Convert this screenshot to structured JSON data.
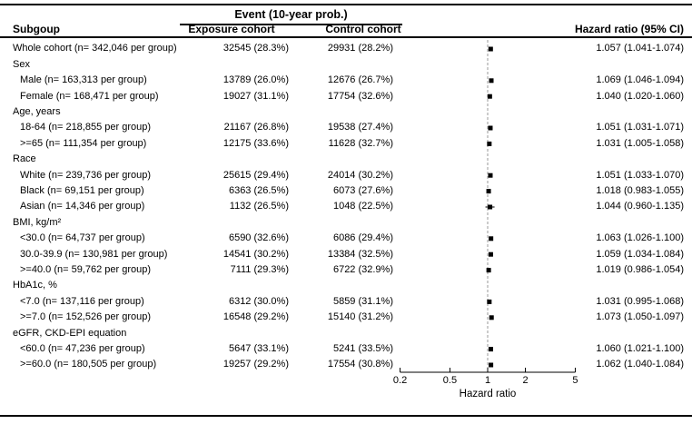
{
  "table": {
    "header": {
      "subgroup": "Subgoup",
      "event_group": "Event (10-year prob.)",
      "exposure": "Exposure cohort",
      "control": "Control cohort",
      "hazard_ratio": "Hazard ratio (95% CI)"
    },
    "rows": [
      {
        "label": "Whole cohort (n= 342,046 per group)",
        "indent": false,
        "exposure": "32545 (28.3%)",
        "control": "29931 (28.2%)",
        "hr_text": "1.057 (1.041-1.074)",
        "hr": 1.057,
        "lo": 1.041,
        "hi": 1.074
      },
      {
        "label": "Sex",
        "indent": false
      },
      {
        "label": "Male (n= 163,313 per group)",
        "indent": true,
        "exposure": "13789 (26.0%)",
        "control": "12676 (26.7%)",
        "hr_text": "1.069 (1.046-1.094)",
        "hr": 1.069,
        "lo": 1.046,
        "hi": 1.094
      },
      {
        "label": "Female (n= 168,471 per group)",
        "indent": true,
        "exposure": "19027 (31.1%)",
        "control": "17754 (32.6%)",
        "hr_text": "1.040 (1.020-1.060)",
        "hr": 1.04,
        "lo": 1.02,
        "hi": 1.06
      },
      {
        "label": "Age, years",
        "indent": false
      },
      {
        "label": "18-64 (n= 218,855 per group)",
        "indent": true,
        "exposure": "21167 (26.8%)",
        "control": "19538 (27.4%)",
        "hr_text": "1.051 (1.031-1.071)",
        "hr": 1.051,
        "lo": 1.031,
        "hi": 1.071
      },
      {
        "label": ">=65 (n= 111,354 per group)",
        "indent": true,
        "exposure": "12175 (33.6%)",
        "control": "11628 (32.7%)",
        "hr_text": "1.031 (1.005-1.058)",
        "hr": 1.031,
        "lo": 1.005,
        "hi": 1.058
      },
      {
        "label": "Race",
        "indent": false
      },
      {
        "label": "White (n= 239,736 per group)",
        "indent": true,
        "exposure": "25615 (29.4%)",
        "control": "24014 (30.2%)",
        "hr_text": "1.051 (1.033-1.070)",
        "hr": 1.051,
        "lo": 1.033,
        "hi": 1.07
      },
      {
        "label": "Black (n= 69,151 per group)",
        "indent": true,
        "exposure": "6363 (26.5%)",
        "control": "6073 (27.6%)",
        "hr_text": "1.018 (0.983-1.055)",
        "hr": 1.018,
        "lo": 0.983,
        "hi": 1.055
      },
      {
        "label": "Asian (n= 14,346 per group)",
        "indent": true,
        "exposure": "1132 (26.5%)",
        "control": "1048 (22.5%)",
        "hr_text": "1.044 (0.960-1.135)",
        "hr": 1.044,
        "lo": 0.96,
        "hi": 1.135
      },
      {
        "label": "BMI, kg/m²",
        "indent": false
      },
      {
        "label": "<30.0 (n= 64,737 per group)",
        "indent": true,
        "exposure": "6590 (32.6%)",
        "control": "6086 (29.4%)",
        "hr_text": "1.063 (1.026-1.100)",
        "hr": 1.063,
        "lo": 1.026,
        "hi": 1.1
      },
      {
        "label": "30.0-39.9 (n= 130,981 per group)",
        "indent": true,
        "exposure": "14541 (30.2%)",
        "control": "13384 (32.5%)",
        "hr_text": "1.059 (1.034-1.084)",
        "hr": 1.059,
        "lo": 1.034,
        "hi": 1.084
      },
      {
        "label": ">=40.0 (n= 59,762 per group)",
        "indent": true,
        "exposure": "7111 (29.3%)",
        "control": "6722 (32.9%)",
        "hr_text": "1.019 (0.986-1.054)",
        "hr": 1.019,
        "lo": 0.986,
        "hi": 1.054
      },
      {
        "label": "HbA1c, %",
        "indent": false
      },
      {
        "label": "<7.0 (n= 137,116 per group)",
        "indent": true,
        "exposure": "6312 (30.0%)",
        "control": "5859 (31.1%)",
        "hr_text": "1.031 (0.995-1.068)",
        "hr": 1.031,
        "lo": 0.995,
        "hi": 1.068
      },
      {
        "label": ">=7.0 (n= 152,526 per group)",
        "indent": true,
        "exposure": "16548 (29.2%)",
        "control": "15140 (31.2%)",
        "hr_text": "1.073 (1.050-1.097)",
        "hr": 1.073,
        "lo": 1.05,
        "hi": 1.097
      },
      {
        "label": "eGFR, CKD-EPI equation",
        "indent": false
      },
      {
        "label": "<60.0 (n= 47,236 per group)",
        "indent": true,
        "exposure": "5647 (33.1%)",
        "control": "5241 (33.5%)",
        "hr_text": "1.060 (1.021-1.100)",
        "hr": 1.06,
        "lo": 1.021,
        "hi": 1.1
      },
      {
        "label": ">=60.0 (n= 180,505 per group)",
        "indent": true,
        "exposure": "19257 (29.2%)",
        "control": "17554 (30.8%)",
        "hr_text": "1.062 (1.040-1.084)",
        "hr": 1.062,
        "lo": 1.04,
        "hi": 1.084
      }
    ]
  },
  "chart_data": {
    "type": "forest",
    "xlabel": "Hazard ratio",
    "xscale": "log",
    "xlim": [
      0.2,
      5
    ],
    "xticks": [
      0.2,
      0.5,
      1,
      2,
      5
    ],
    "ref_line": 1,
    "marker": "black-square",
    "points": [
      {
        "subgroup": "Whole cohort",
        "hr": 1.057,
        "lo": 1.041,
        "hi": 1.074
      },
      {
        "subgroup": "Male",
        "hr": 1.069,
        "lo": 1.046,
        "hi": 1.094
      },
      {
        "subgroup": "Female",
        "hr": 1.04,
        "lo": 1.02,
        "hi": 1.06
      },
      {
        "subgroup": "18-64",
        "hr": 1.051,
        "lo": 1.031,
        "hi": 1.071
      },
      {
        "subgroup": ">=65",
        "hr": 1.031,
        "lo": 1.005,
        "hi": 1.058
      },
      {
        "subgroup": "White",
        "hr": 1.051,
        "lo": 1.033,
        "hi": 1.07
      },
      {
        "subgroup": "Black",
        "hr": 1.018,
        "lo": 0.983,
        "hi": 1.055
      },
      {
        "subgroup": "Asian",
        "hr": 1.044,
        "lo": 0.96,
        "hi": 1.135
      },
      {
        "subgroup": "<30.0",
        "hr": 1.063,
        "lo": 1.026,
        "hi": 1.1
      },
      {
        "subgroup": "30.0-39.9",
        "hr": 1.059,
        "lo": 1.034,
        "hi": 1.084
      },
      {
        "subgroup": ">=40.0",
        "hr": 1.019,
        "lo": 0.986,
        "hi": 1.054
      },
      {
        "subgroup": "<7.0",
        "hr": 1.031,
        "lo": 0.995,
        "hi": 1.068
      },
      {
        "subgroup": ">=7.0",
        "hr": 1.073,
        "lo": 1.05,
        "hi": 1.097
      },
      {
        "subgroup": "<60.0",
        "hr": 1.06,
        "lo": 1.021,
        "hi": 1.1
      },
      {
        "subgroup": ">=60.0",
        "hr": 1.062,
        "lo": 1.04,
        "hi": 1.084
      }
    ],
    "colors": {
      "marker": "#000000",
      "ci_line": "#000000",
      "ref_line_dashed": "#999999",
      "axis": "#000000"
    }
  }
}
